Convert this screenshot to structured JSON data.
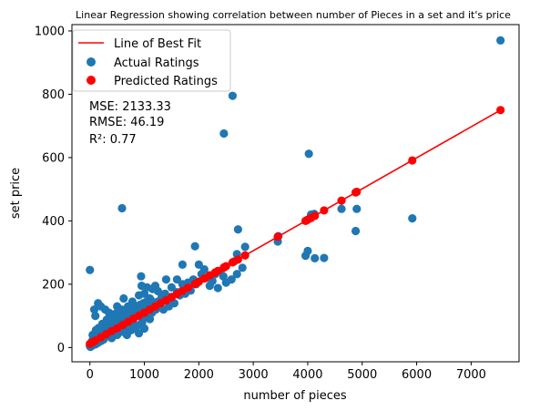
{
  "colors": {
    "actual": "#1f77b4",
    "predicted": "#ff0000",
    "fit": "#ff0000"
  },
  "chart_data": {
    "type": "scatter",
    "title": "Linear Regression showing correlation between number of Pieces in a set and it's price",
    "xlabel": "number of pieces",
    "ylabel": "set price",
    "xlim": [
      -330,
      7880
    ],
    "ylim": [
      -45,
      1020
    ],
    "xticks": [
      0,
      1000,
      2000,
      3000,
      4000,
      5000,
      6000,
      7000
    ],
    "yticks": [
      0,
      200,
      400,
      600,
      800,
      1000
    ],
    "grid": false,
    "legend": {
      "placement": "top-left",
      "entries": [
        {
          "label": "Line of Best Fit",
          "kind": "line",
          "color": "#ff0000"
        },
        {
          "label": "Actual Ratings",
          "kind": "marker",
          "color": "#1f77b4"
        },
        {
          "label": "Predicted Ratings",
          "kind": "marker",
          "color": "#ff0000"
        }
      ]
    },
    "annotations": [
      "MSE: 2133.33",
      "RMSE: 46.19",
      "R²: 0.77"
    ],
    "fit_line": {
      "intercept": 12.5,
      "slope": 0.0978,
      "x": [
        0,
        7540
      ]
    },
    "series": [
      {
        "name": "Actual Ratings",
        "color": "#1f77b4",
        "points": [
          [
            7540,
            970
          ],
          [
            2620,
            795
          ],
          [
            2460,
            676
          ],
          [
            4020,
            612
          ],
          [
            5920,
            408
          ],
          [
            590,
            440
          ],
          [
            2720,
            373
          ],
          [
            3450,
            335
          ],
          [
            3960,
            290
          ],
          [
            4000,
            305
          ],
          [
            4130,
            282
          ],
          [
            4300,
            283
          ],
          [
            4880,
            368
          ],
          [
            4900,
            438
          ],
          [
            4620,
            438
          ],
          [
            4060,
            420
          ],
          [
            4120,
            422
          ],
          [
            3460,
            352
          ],
          [
            1930,
            320
          ],
          [
            2850,
            318
          ],
          [
            2700,
            295
          ],
          [
            2000,
            262
          ],
          [
            1700,
            262
          ],
          [
            2100,
            247
          ],
          [
            2650,
            272
          ],
          [
            2300,
            232
          ],
          [
            2400,
            242
          ],
          [
            2700,
            232
          ],
          [
            2200,
            195
          ],
          [
            2350,
            188
          ],
          [
            2500,
            205
          ],
          [
            2600,
            215
          ],
          [
            2800,
            252
          ],
          [
            0,
            245
          ],
          [
            80,
            120
          ],
          [
            100,
            100
          ],
          [
            150,
            140
          ],
          [
            200,
            130
          ],
          [
            280,
            120
          ],
          [
            350,
            110
          ],
          [
            400,
            95
          ],
          [
            500,
            130
          ],
          [
            620,
            155
          ],
          [
            700,
            130
          ],
          [
            780,
            145
          ],
          [
            900,
            165
          ],
          [
            940,
            225
          ],
          [
            1000,
            170
          ],
          [
            1100,
            155
          ],
          [
            1200,
            195
          ],
          [
            1300,
            150
          ],
          [
            1400,
            215
          ],
          [
            1500,
            190
          ],
          [
            1600,
            215
          ],
          [
            1700,
            200
          ],
          [
            1800,
            205
          ],
          [
            1900,
            215
          ],
          [
            2050,
            232
          ],
          [
            900,
            100
          ],
          [
            1000,
            110
          ],
          [
            1200,
            130
          ],
          [
            1300,
            140
          ],
          [
            1100,
            90
          ],
          [
            800,
            70
          ],
          [
            600,
            50
          ],
          [
            900,
            45
          ],
          [
            1000,
            60
          ],
          [
            1500,
            160
          ],
          [
            1600,
            175
          ],
          [
            1800,
            185
          ],
          [
            1450,
            150
          ],
          [
            1350,
            165
          ],
          [
            1250,
            178
          ],
          [
            1150,
            185
          ],
          [
            1050,
            190
          ],
          [
            950,
            195
          ],
          [
            850,
            105
          ],
          [
            750,
            95
          ],
          [
            700,
            80
          ],
          [
            650,
            60
          ],
          [
            550,
            65
          ],
          [
            500,
            40
          ],
          [
            450,
            45
          ],
          [
            400,
            30
          ],
          [
            350,
            50
          ],
          [
            300,
            35
          ],
          [
            250,
            25
          ],
          [
            200,
            20
          ],
          [
            150,
            15
          ],
          [
            100,
            10
          ],
          [
            60,
            8
          ],
          [
            30,
            5
          ],
          [
            10,
            2
          ],
          [
            20,
            12
          ],
          [
            40,
            20
          ],
          [
            70,
            30
          ],
          [
            120,
            35
          ],
          [
            180,
            45
          ],
          [
            220,
            55
          ],
          [
            260,
            70
          ],
          [
            320,
            75
          ],
          [
            380,
            60
          ],
          [
            420,
            85
          ],
          [
            480,
            90
          ],
          [
            540,
            100
          ],
          [
            600,
            110
          ],
          [
            660,
            115
          ],
          [
            720,
            120
          ],
          [
            800,
            125
          ],
          [
            860,
            130
          ],
          [
            920,
            135
          ],
          [
            980,
            140
          ],
          [
            1040,
            145
          ],
          [
            1120,
            150
          ],
          [
            1180,
            140
          ],
          [
            1240,
            135
          ],
          [
            1320,
            160
          ],
          [
            1380,
            170
          ],
          [
            250,
            55
          ],
          [
            300,
            65
          ],
          [
            350,
            70
          ],
          [
            450,
            80
          ],
          [
            550,
            90
          ],
          [
            650,
            95
          ],
          [
            750,
            105
          ],
          [
            850,
            115
          ],
          [
            950,
            120
          ],
          [
            1050,
            125
          ],
          [
            1150,
            130
          ],
          [
            1250,
            145
          ],
          [
            90,
            15
          ],
          [
            130,
            22
          ],
          [
            170,
            28
          ],
          [
            210,
            32
          ],
          [
            290,
            42
          ],
          [
            330,
            48
          ],
          [
            370,
            52
          ],
          [
            410,
            58
          ],
          [
            460,
            62
          ],
          [
            510,
            68
          ],
          [
            570,
            72
          ],
          [
            630,
            78
          ],
          [
            690,
            85
          ],
          [
            740,
            88
          ],
          [
            790,
            92
          ],
          [
            50,
            40
          ],
          [
            110,
            55
          ],
          [
            160,
            62
          ],
          [
            230,
            75
          ],
          [
            310,
            88
          ],
          [
            360,
            95
          ],
          [
            440,
            105
          ],
          [
            520,
            115
          ],
          [
            580,
            120
          ],
          [
            0,
            5
          ],
          [
            15,
            8
          ],
          [
            25,
            15
          ],
          [
            45,
            10
          ],
          [
            55,
            25
          ],
          [
            85,
            20
          ],
          [
            1350,
            120
          ],
          [
            1450,
            130
          ],
          [
            1550,
            140
          ],
          [
            1650,
            165
          ],
          [
            1750,
            170
          ],
          [
            1850,
            180
          ],
          [
            1950,
            200
          ],
          [
            2150,
            220
          ],
          [
            2250,
            210
          ],
          [
            2450,
            225
          ],
          [
            680,
            40
          ],
          [
            760,
            55
          ],
          [
            820,
            60
          ],
          [
            880,
            70
          ],
          [
            960,
            80
          ],
          [
            1020,
            95
          ],
          [
            1080,
            100
          ],
          [
            1140,
            110
          ],
          [
            1210,
            120
          ],
          [
            1280,
            130
          ]
        ]
      },
      {
        "name": "Predicted Ratings",
        "color": "#ff0000",
        "points": [
          [
            7540,
            750
          ],
          [
            5920,
            591
          ],
          [
            4900,
            492
          ],
          [
            4880,
            490
          ],
          [
            4620,
            464
          ],
          [
            4300,
            433
          ],
          [
            4130,
            416
          ],
          [
            4060,
            409
          ],
          [
            4000,
            404
          ],
          [
            3960,
            400
          ],
          [
            3450,
            350
          ],
          [
            2850,
            291
          ],
          [
            2720,
            278
          ],
          [
            2620,
            269
          ],
          [
            2500,
            257
          ],
          [
            2460,
            253
          ],
          [
            2350,
            242
          ],
          [
            2300,
            237
          ],
          [
            2200,
            228
          ],
          [
            2100,
            218
          ],
          [
            2000,
            208
          ],
          [
            1930,
            201
          ],
          [
            1800,
            189
          ],
          [
            1700,
            179
          ],
          [
            1600,
            169
          ],
          [
            1500,
            159
          ],
          [
            1400,
            149
          ],
          [
            1300,
            140
          ],
          [
            1200,
            130
          ],
          [
            1100,
            120
          ],
          [
            1000,
            110
          ],
          [
            900,
            101
          ],
          [
            800,
            91
          ],
          [
            700,
            81
          ],
          [
            600,
            71
          ],
          [
            500,
            61
          ],
          [
            400,
            52
          ],
          [
            300,
            42
          ],
          [
            200,
            32
          ],
          [
            100,
            22
          ],
          [
            50,
            17
          ],
          [
            0,
            12
          ]
        ]
      }
    ]
  }
}
